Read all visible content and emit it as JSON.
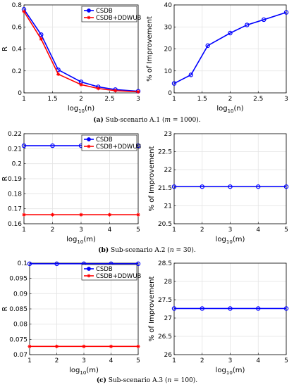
{
  "chart_data": [
    {
      "type": "line",
      "xlabel": "log10(n)",
      "ylabel": "R",
      "xlim": [
        1,
        3
      ],
      "ylim": [
        0,
        0.8
      ],
      "xticks": [
        1,
        1.5,
        2,
        2.5,
        3
      ],
      "yticks": [
        0,
        0.2,
        0.4,
        0.6,
        0.8
      ],
      "grid": true,
      "legend": "top-right",
      "x": [
        1,
        1.3,
        1.6,
        2,
        2.3,
        2.6,
        3
      ],
      "series": [
        {
          "name": "CSDB",
          "color": "#0000ff",
          "marker": "circle",
          "values": [
            0.76,
            0.53,
            0.21,
            0.1,
            0.055,
            0.03,
            0.015
          ]
        },
        {
          "name": "CSDB+DDWUB",
          "color": "#ff0000",
          "marker": "star",
          "values": [
            0.74,
            0.49,
            0.17,
            0.075,
            0.04,
            0.02,
            0.01
          ]
        }
      ]
    },
    {
      "type": "line",
      "xlabel": "log10(n)",
      "ylabel": "% of Improvement",
      "xlim": [
        1,
        3
      ],
      "ylim": [
        0,
        40
      ],
      "xticks": [
        1,
        1.5,
        2,
        2.5,
        3
      ],
      "yticks": [
        0,
        10,
        20,
        30,
        40
      ],
      "grid": true,
      "x": [
        1,
        1.3,
        1.6,
        2,
        2.3,
        2.6,
        3
      ],
      "series": [
        {
          "color": "#0000ff",
          "marker": "circle",
          "values": [
            4.3,
            8.2,
            21.5,
            27.2,
            30.9,
            33.3,
            36.6
          ]
        }
      ]
    },
    {
      "type": "line",
      "xlabel": "log10(m)",
      "ylabel": "R",
      "xlim": [
        1,
        5
      ],
      "ylim": [
        0.16,
        0.22
      ],
      "xticks": [
        1,
        2,
        3,
        4,
        5
      ],
      "yticks": [
        0.16,
        0.17,
        0.18,
        0.19,
        0.2,
        0.21,
        0.22
      ],
      "grid": true,
      "legend": "top-right",
      "x": [
        1,
        2,
        3,
        4,
        5
      ],
      "series": [
        {
          "name": "CSDB",
          "color": "#0000ff",
          "marker": "circle",
          "values": [
            0.212,
            0.212,
            0.212,
            0.212,
            0.212
          ]
        },
        {
          "name": "CSDB+DDWUB",
          "color": "#ff0000",
          "marker": "star",
          "values": [
            0.166,
            0.166,
            0.166,
            0.166,
            0.166
          ]
        }
      ]
    },
    {
      "type": "line",
      "xlabel": "log10(m)",
      "ylabel": "% of Improvement",
      "xlim": [
        1,
        5
      ],
      "ylim": [
        20.5,
        23
      ],
      "xticks": [
        1,
        2,
        3,
        4,
        5
      ],
      "yticks": [
        20.5,
        21,
        21.5,
        22,
        22.5,
        23
      ],
      "grid": true,
      "x": [
        1,
        2,
        3,
        4,
        5
      ],
      "series": [
        {
          "color": "#0000ff",
          "marker": "circle",
          "values": [
            21.53,
            21.53,
            21.53,
            21.53,
            21.53
          ]
        }
      ]
    },
    {
      "type": "line",
      "xlabel": "log10(m)",
      "ylabel": "R",
      "xlim": [
        1,
        5
      ],
      "ylim": [
        0.07,
        0.1
      ],
      "xticks": [
        1,
        2,
        3,
        4,
        5
      ],
      "yticks": [
        0.07,
        0.075,
        0.08,
        0.085,
        0.09,
        0.095,
        0.1
      ],
      "grid": true,
      "legend": "top-right",
      "x": [
        1,
        2,
        3,
        4,
        5
      ],
      "series": [
        {
          "name": "CSDB",
          "color": "#0000ff",
          "marker": "circle",
          "values": [
            0.0998,
            0.0998,
            0.0998,
            0.0998,
            0.0998
          ]
        },
        {
          "name": "CSDB+DDWUB",
          "color": "#ff0000",
          "marker": "star",
          "values": [
            0.0727,
            0.0727,
            0.0727,
            0.0727,
            0.0727
          ]
        }
      ]
    },
    {
      "type": "line",
      "xlabel": "log10(m)",
      "ylabel": "% of Improvement",
      "xlim": [
        1,
        5
      ],
      "ylim": [
        26,
        28.5
      ],
      "xticks": [
        1,
        2,
        3,
        4,
        5
      ],
      "yticks": [
        26,
        26.5,
        27,
        27.5,
        28,
        28.5
      ],
      "grid": true,
      "x": [
        1,
        2,
        3,
        4,
        5
      ],
      "series": [
        {
          "color": "#0000ff",
          "marker": "circle",
          "values": [
            27.26,
            27.26,
            27.26,
            27.26,
            27.26
          ]
        }
      ]
    }
  ],
  "captions": [
    {
      "label": "(a)",
      "text": "Sub-scenario A.1 (",
      "var": "m",
      "value": " = 1000)."
    },
    {
      "label": "(b)",
      "text": "Sub-scenario A.2 (",
      "var": "n",
      "value": " = 30)."
    },
    {
      "label": "(c)",
      "text": "Sub-scenario A.3 (",
      "var": "n",
      "value": " = 100)."
    }
  ]
}
